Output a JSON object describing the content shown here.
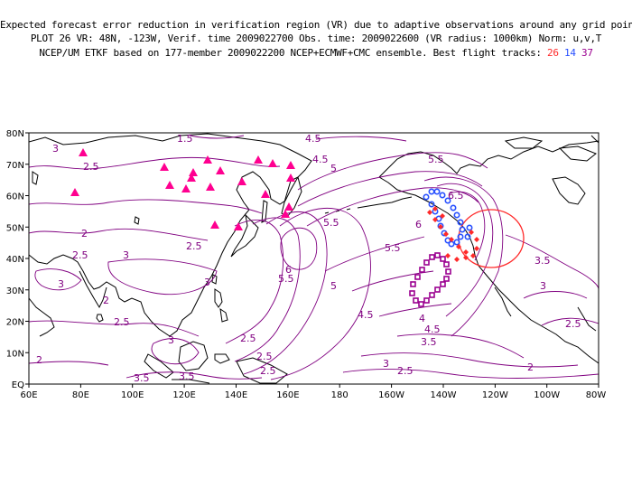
{
  "title": {
    "line1": "Expected forecast error reduction in verification region (VR) due to adaptive observations around any grid point.",
    "line2": "PLOT 26 VR: 48N, -123W, Verif. time 2009022700 Obs. time: 2009022600 (VR radius: 1000km) Norm: u,v,T",
    "line3_prefix": "NCEP/UM ETKF based on 177-member 2009022200 NCEP+ECMWF+CMC ensemble. Best flight tracks:",
    "track_a": "26",
    "track_b": "14",
    "track_c": "37"
  },
  "colors": {
    "contour": "#800080",
    "coast": "#000000",
    "track_red": "#ff2a2a",
    "track_blue": "#2850ff",
    "track_purple": "#9b0090",
    "triangles": "#ff0090",
    "vr_circle": "#ff2a2a"
  },
  "lat_ticks": [
    "80N",
    "70N",
    "60N",
    "50N",
    "40N",
    "30N",
    "20N",
    "10N",
    "EQ"
  ],
  "lon_ticks": [
    "60E",
    "80E",
    "100E",
    "120E",
    "140E",
    "160E",
    "180",
    "160W",
    "140W",
    "120W",
    "100W",
    "80W"
  ],
  "contour_labels": [
    "3",
    "2.5",
    "2",
    "1.5",
    "3",
    "2.5",
    "3",
    "2.5",
    "2",
    "3",
    "2.5",
    "3",
    "3.5",
    "4.5",
    "5.5",
    "6",
    "5.5",
    "5",
    "4.5",
    "3.5",
    "5.5",
    "6",
    "6.5",
    "5.5",
    "5",
    "4",
    "4.5",
    "3.5",
    "3",
    "2.5",
    "2",
    "2.5",
    "3.5",
    "2.5",
    "4.5",
    "3",
    "2.5",
    "2",
    "2.5"
  ],
  "verification_region": {
    "lat": 48,
    "lon": -123,
    "radius_km": 1000
  }
}
